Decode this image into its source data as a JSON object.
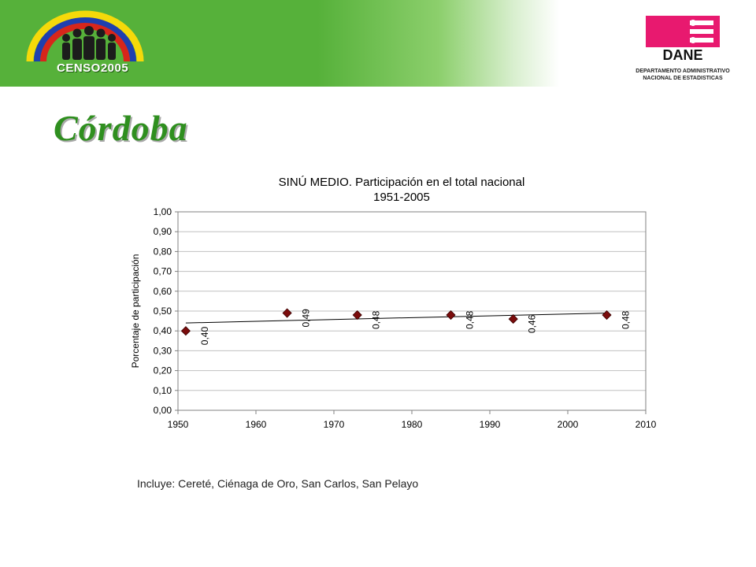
{
  "header": {
    "censo_label": "CENSO",
    "censo_year": "2005",
    "dane_label": "DANE",
    "dane_caption_line1": "DEPARTAMENTO ADMINISTRATIVO",
    "dane_caption_line2": "NACIONAL DE ESTADISTICAS"
  },
  "page_title": "Córdoba",
  "colors": {
    "banner_green": "#56b13a",
    "title_green": "#2f8f1f",
    "dane_magenta": "#e8196f",
    "marker": "#7b0c0c"
  },
  "chart_data": {
    "type": "scatter",
    "title_line1": "SINÚ MEDIO. Participación en el total nacional",
    "title_line2": "1951-2005",
    "xlabel": "",
    "ylabel": "Porcentaje de participación",
    "xlim": [
      1950,
      2010
    ],
    "ylim": [
      0,
      1
    ],
    "x_ticks": [
      "1950",
      "1960",
      "1970",
      "1980",
      "1990",
      "2000",
      "2010"
    ],
    "y_ticks": [
      "0,00",
      "0,10",
      "0,20",
      "0,30",
      "0,40",
      "0,50",
      "0,60",
      "0,70",
      "0,80",
      "0,90",
      "1,00"
    ],
    "grid": true,
    "points": [
      {
        "x": 1951,
        "y": 0.4,
        "label": "0,40"
      },
      {
        "x": 1964,
        "y": 0.49,
        "label": "0,49"
      },
      {
        "x": 1973,
        "y": 0.48,
        "label": "0,48"
      },
      {
        "x": 1985,
        "y": 0.48,
        "label": "0,48"
      },
      {
        "x": 1993,
        "y": 0.46,
        "label": "0,46"
      },
      {
        "x": 2005,
        "y": 0.48,
        "label": "0,48"
      }
    ],
    "trendline": {
      "x": [
        1951,
        2005
      ],
      "y": [
        0.44,
        0.49
      ]
    }
  },
  "note": "Incluye: Cereté, Ciénaga de Oro, San Carlos, San Pelayo"
}
